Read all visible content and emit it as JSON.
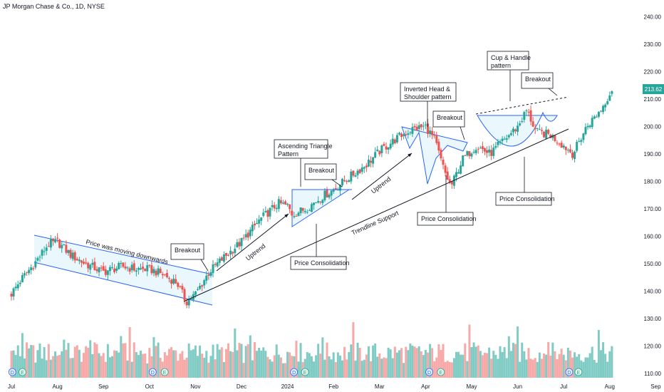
{
  "header": {
    "title": "JP Morgan Chase & Co., 1D, NYSE"
  },
  "price_badge": {
    "label": "213.62",
    "value": 213.62,
    "color": "#26a69a"
  },
  "chart_data": {
    "type": "candlestick",
    "ylim": [
      105,
      243
    ],
    "y_ticks": [
      110,
      120,
      130,
      140,
      150,
      160,
      170,
      180,
      190,
      200,
      210,
      220,
      230,
      240
    ],
    "y_tick_labels": [
      "110.00",
      "120.00",
      "130.00",
      "140.00",
      "150.00",
      "160.00",
      "170.00",
      "180.00",
      "190.00",
      "200.00",
      "210.00",
      "220.00",
      "230.00",
      "240.00"
    ],
    "x_labels": [
      {
        "label": "Jul",
        "month": 0
      },
      {
        "label": "Aug",
        "month": 1
      },
      {
        "label": "Sep",
        "month": 2
      },
      {
        "label": "Oct",
        "month": 3
      },
      {
        "label": "Nov",
        "month": 4
      },
      {
        "label": "Dec",
        "month": 5
      },
      {
        "label": "2024",
        "month": 6
      },
      {
        "label": "Feb",
        "month": 7
      },
      {
        "label": "Mar",
        "month": 8
      },
      {
        "label": "Apr",
        "month": 9
      },
      {
        "label": "May",
        "month": 10
      },
      {
        "label": "Jun",
        "month": 11
      },
      {
        "label": "Jul",
        "month": 12
      },
      {
        "label": "Aug",
        "month": 13
      },
      {
        "label": "Sep",
        "month": 14
      }
    ],
    "price_path": [
      [
        0,
        139
      ],
      [
        0.2,
        144
      ],
      [
        0.5,
        150
      ],
      [
        0.8,
        157
      ],
      [
        1.0,
        158
      ],
      [
        1.3,
        153
      ],
      [
        1.6,
        150
      ],
      [
        2.0,
        147
      ],
      [
        2.4,
        149
      ],
      [
        2.7,
        148
      ],
      [
        3.0,
        148
      ],
      [
        3.3,
        146
      ],
      [
        3.6,
        143
      ],
      [
        3.8,
        136
      ],
      [
        4.0,
        139
      ],
      [
        4.3,
        147
      ],
      [
        4.6,
        152
      ],
      [
        5.0,
        158
      ],
      [
        5.4,
        166
      ],
      [
        5.8,
        172
      ],
      [
        6.0,
        171
      ],
      [
        6.1,
        168
      ],
      [
        6.4,
        170
      ],
      [
        6.8,
        175
      ],
      [
        7.0,
        177
      ],
      [
        7.3,
        181
      ],
      [
        7.7,
        186
      ],
      [
        8.0,
        191
      ],
      [
        8.4,
        196
      ],
      [
        8.7,
        199
      ],
      [
        9.0,
        200
      ],
      [
        9.2,
        195
      ],
      [
        9.4,
        184
      ],
      [
        9.55,
        178
      ],
      [
        9.8,
        188
      ],
      [
        10.1,
        193
      ],
      [
        10.4,
        190
      ],
      [
        10.7,
        195
      ],
      [
        11.0,
        200
      ],
      [
        11.2,
        206
      ],
      [
        11.4,
        198
      ],
      [
        11.7,
        197
      ],
      [
        12.0,
        193
      ],
      [
        12.2,
        190
      ],
      [
        12.5,
        200
      ],
      [
        12.8,
        206
      ],
      [
        13.0,
        212
      ],
      [
        13.05,
        213.62
      ]
    ],
    "events": [
      {
        "type": "D",
        "month": 0.02
      },
      {
        "type": "E",
        "month": 0.24
      },
      {
        "type": "D",
        "month": 3.07
      },
      {
        "type": "E",
        "month": 3.33
      },
      {
        "type": "D",
        "month": 6.14
      },
      {
        "type": "E",
        "month": 6.38
      },
      {
        "type": "D",
        "month": 9.08
      },
      {
        "type": "E",
        "month": 9.33
      },
      {
        "type": "D",
        "month": 12.12
      },
      {
        "type": "E",
        "month": 12.32
      }
    ],
    "annotations": {
      "downtrend_label": "Price was moving downwards",
      "breakout1": "Breakout",
      "uptrend1": "Uptrend",
      "triangle_title": "Ascending Triangle\nPattern",
      "breakout2": "Breakout",
      "consolidation1": "Price Consolidation",
      "uptrend2": "Uptrend",
      "trendline": "Trendline Support",
      "hs_title": "Inverted Head &\nShoulder pattern",
      "breakout3": "Breakout",
      "consolidation2": "Price Consolidation",
      "cup_title": "Cup & Handle\npattern",
      "breakout4": "Breakout",
      "consolidation3": "Price Consolidation"
    },
    "colors": {
      "up": "#26a69a",
      "down": "#ef5350",
      "up_vol": "#80cbc4",
      "down_vol": "#f7a9a7",
      "pattern_fill": "#e1f5fe",
      "pattern_line": "#2962ff"
    }
  }
}
